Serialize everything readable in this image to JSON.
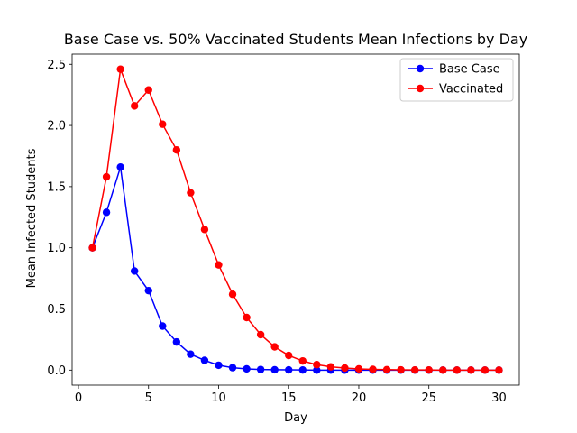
{
  "chart_data": {
    "type": "line",
    "title": "Base Case vs. 50% Vaccinated Students Mean Infections by Day",
    "xlabel": "Day",
    "ylabel": "Mean Infected Students",
    "xlim": [
      -0.45,
      31.45
    ],
    "ylim": [
      -0.123,
      2.583
    ],
    "xticks": [
      0,
      5,
      10,
      15,
      20,
      25,
      30
    ],
    "yticks": [
      0.0,
      0.5,
      1.0,
      1.5,
      2.0,
      2.5
    ],
    "xtick_labels": [
      "0",
      "5",
      "10",
      "15",
      "20",
      "25",
      "30"
    ],
    "ytick_labels": [
      "0.0",
      "0.5",
      "1.0",
      "1.5",
      "2.0",
      "2.5"
    ],
    "grid": false,
    "legend_position": "upper right",
    "x": [
      1,
      2,
      3,
      4,
      5,
      6,
      7,
      8,
      9,
      10,
      11,
      12,
      13,
      14,
      15,
      16,
      17,
      18,
      19,
      20,
      21,
      22,
      23,
      24,
      25,
      26,
      27,
      28,
      29,
      30
    ],
    "series": [
      {
        "name": "Base Case",
        "color": "#0000ff",
        "marker": "circle",
        "values": [
          1.0,
          1.29,
          1.66,
          0.81,
          0.65,
          0.36,
          0.23,
          0.13,
          0.08,
          0.04,
          0.02,
          0.01,
          0.005,
          0.003,
          0.002,
          0.001,
          0.0,
          0.0,
          0.0,
          0.0,
          0.0,
          0.0,
          0.0,
          0.0,
          0.0,
          0.0,
          0.0,
          0.0,
          0.0,
          0.0
        ]
      },
      {
        "name": "Vaccinated",
        "color": "#ff0000",
        "marker": "circle",
        "values": [
          1.0,
          1.58,
          2.46,
          2.16,
          2.29,
          2.01,
          1.8,
          1.45,
          1.15,
          0.86,
          0.62,
          0.43,
          0.29,
          0.19,
          0.12,
          0.075,
          0.045,
          0.027,
          0.017,
          0.01,
          0.006,
          0.004,
          0.002,
          0.001,
          0.001,
          0.0,
          0.0,
          0.0,
          0.0,
          0.0
        ]
      }
    ]
  }
}
